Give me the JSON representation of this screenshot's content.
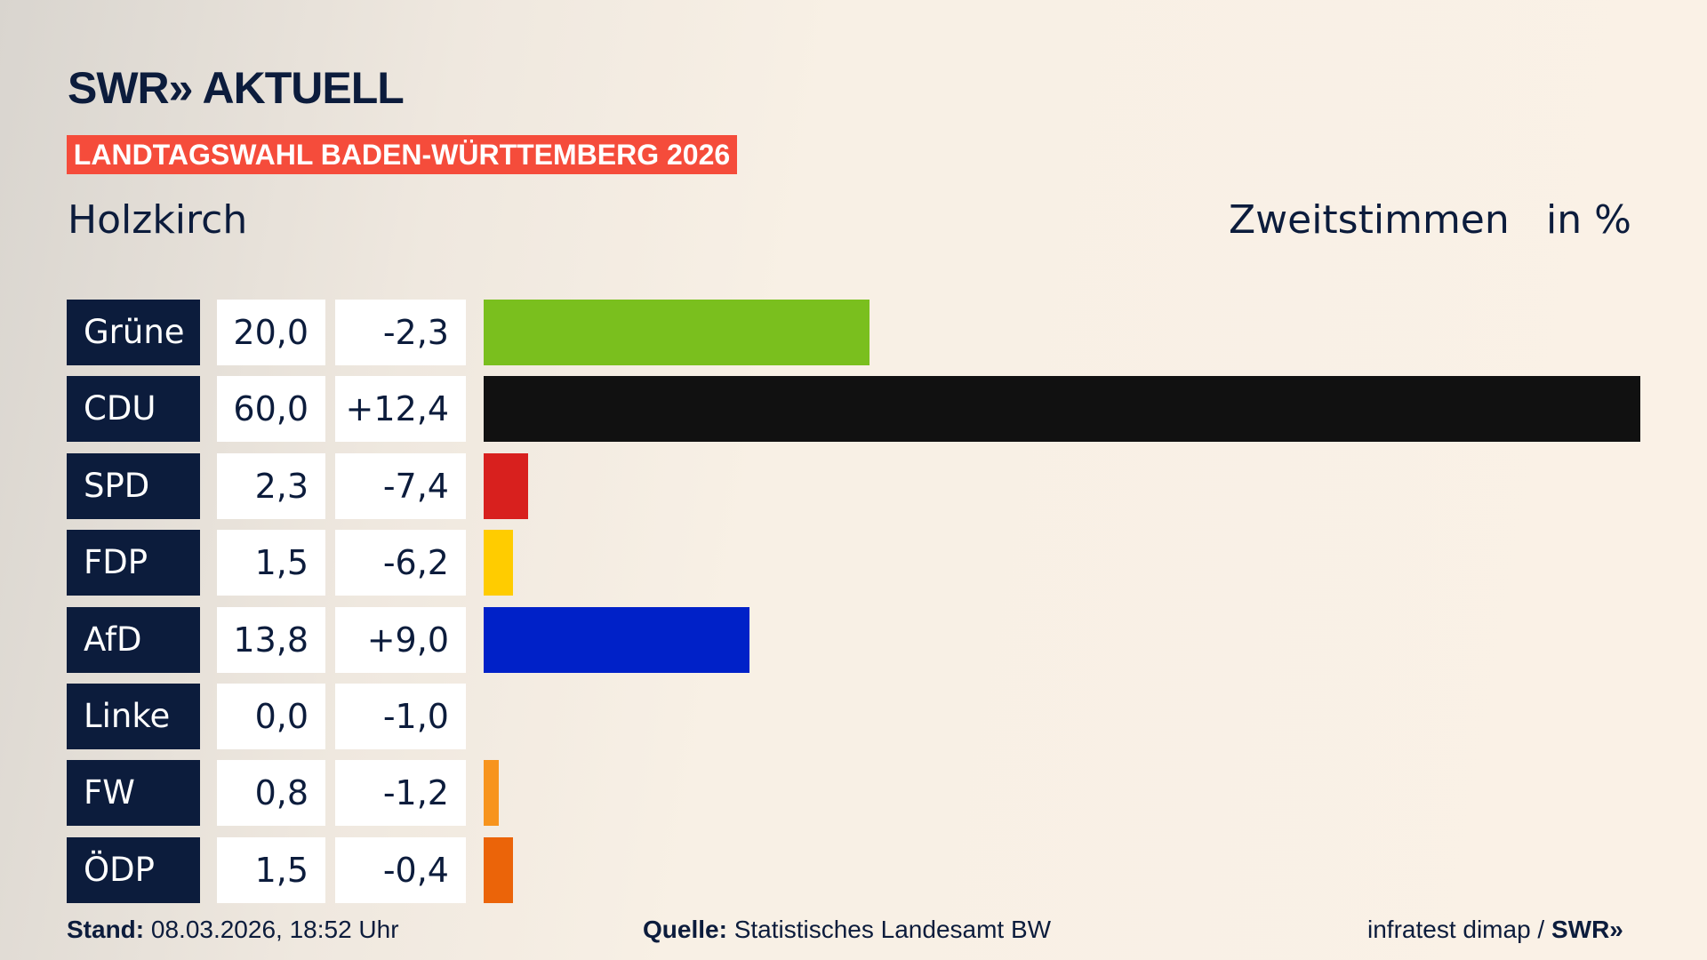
{
  "header": {
    "logo": "SWR» AKTUELL",
    "banner": "LANDTAGSWAHL BADEN-WÜRTTEMBERG 2026",
    "place": "Holzkirch",
    "vote_type": "Zweitstimmen",
    "unit": "in %"
  },
  "chart_data": {
    "type": "bar",
    "orientation": "horizontal",
    "categories": [
      "Grüne",
      "CDU",
      "SPD",
      "FDP",
      "AfD",
      "Linke",
      "FW",
      "ÖDP"
    ],
    "values": [
      "20,0",
      "60,0",
      "2,3",
      "1,5",
      "13,8",
      "0,0",
      "0,8",
      "1,5"
    ],
    "changes": [
      "-2,3",
      "+12,4",
      "-7,4",
      "-6,2",
      "+9,0",
      "-1,0",
      "-1,2",
      "-0,4"
    ],
    "numeric_values": [
      20.0,
      60.0,
      2.3,
      1.5,
      13.8,
      0.0,
      0.8,
      1.5
    ],
    "colors": [
      "#7abf1e",
      "#111111",
      "#d8201e",
      "#ffcc00",
      "#0021c8",
      "#b0246e",
      "#f7941d",
      "#eb6409"
    ],
    "xlim": [
      0,
      60
    ]
  },
  "footer": {
    "stand_label": "Stand:",
    "stand_value": "08.03.2026, 18:52 Uhr",
    "source_label": "Quelle:",
    "source_value": "Statistisches Landesamt BW",
    "credit": "infratest dimap / ",
    "credit_brand": "SWR»"
  }
}
